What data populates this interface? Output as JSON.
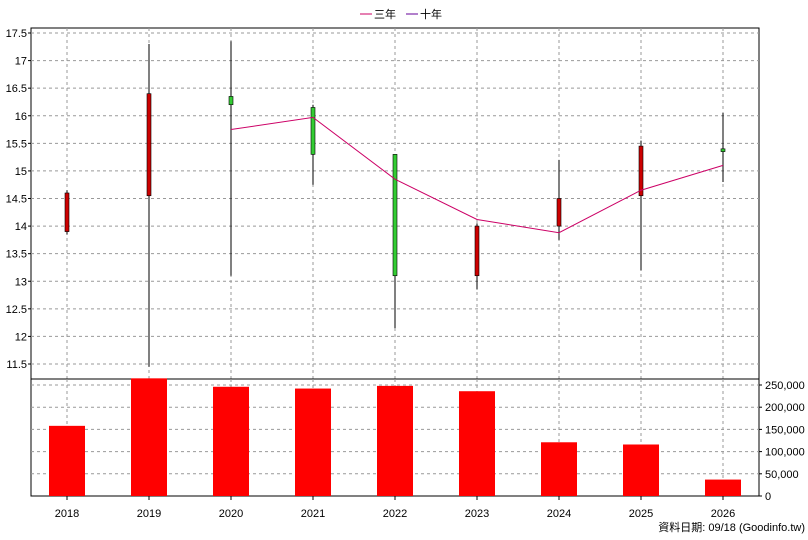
{
  "legend": [
    {
      "label": "三年",
      "color": "#cc0066"
    },
    {
      "label": "十年",
      "color": "#660099"
    }
  ],
  "footer": "資料日期: 09/18 (Goodinfo.tw)",
  "colors": {
    "up": "#cc0000",
    "down": "#33cc33",
    "volume": "#ff0000",
    "grid": "#999999"
  },
  "chart_data": [
    {
      "type": "candlestick",
      "categories": [
        "2018",
        "2019",
        "2020",
        "2021",
        "2022",
        "2023",
        "2024",
        "2025",
        "2026"
      ],
      "ylim": [
        11.2,
        17.5
      ],
      "yticks": [
        "11.5",
        "12",
        "12.5",
        "13",
        "13.5",
        "14",
        "14.5",
        "15",
        "15.5",
        "16",
        "16.5",
        "17",
        "17.5"
      ],
      "candles": [
        {
          "x": "2018",
          "open": 13.9,
          "high": 14.65,
          "low": 13.85,
          "close": 14.6,
          "color": "up"
        },
        {
          "x": "2019",
          "open": 14.55,
          "high": 17.3,
          "low": 11.45,
          "close": 16.4,
          "color": "up"
        },
        {
          "x": "2020",
          "open": 16.35,
          "high": 17.35,
          "low": 13.1,
          "close": 16.2,
          "color": "down"
        },
        {
          "x": "2021",
          "open": 16.15,
          "high": 16.2,
          "low": 14.75,
          "close": 15.3,
          "color": "down"
        },
        {
          "x": "2022",
          "open": 15.3,
          "high": 15.3,
          "low": 12.15,
          "close": 13.1,
          "color": "down"
        },
        {
          "x": "2023",
          "open": 13.1,
          "high": 14.05,
          "low": 12.85,
          "close": 14.0,
          "color": "up"
        },
        {
          "x": "2024",
          "open": 14.0,
          "high": 15.2,
          "low": 13.75,
          "close": 14.5,
          "color": "up"
        },
        {
          "x": "2025",
          "open": 14.55,
          "high": 15.55,
          "low": 13.2,
          "close": 15.45,
          "color": "up"
        },
        {
          "x": "2026",
          "open": 15.35,
          "high": 16.05,
          "low": 14.8,
          "close": 15.4,
          "color": "down"
        }
      ],
      "series": [
        {
          "name": "三年",
          "x": [
            "2020",
            "2021",
            "2022",
            "2023",
            "2024",
            "2025",
            "2026"
          ],
          "values": [
            15.75,
            15.97,
            14.85,
            14.12,
            13.88,
            14.65,
            15.1
          ]
        }
      ],
      "grid": true,
      "legend_position": "top-center"
    },
    {
      "type": "bar",
      "categories": [
        "2018",
        "2019",
        "2020",
        "2021",
        "2022",
        "2023",
        "2024",
        "2025",
        "2026"
      ],
      "values": [
        158000,
        265000,
        246000,
        242000,
        248000,
        236000,
        121000,
        116000,
        37000
      ],
      "ylim": [
        0,
        250000
      ],
      "yticks": [
        "0",
        "50,000",
        "100,000",
        "150,000",
        "200,000",
        "250,000"
      ],
      "grid": true
    }
  ]
}
